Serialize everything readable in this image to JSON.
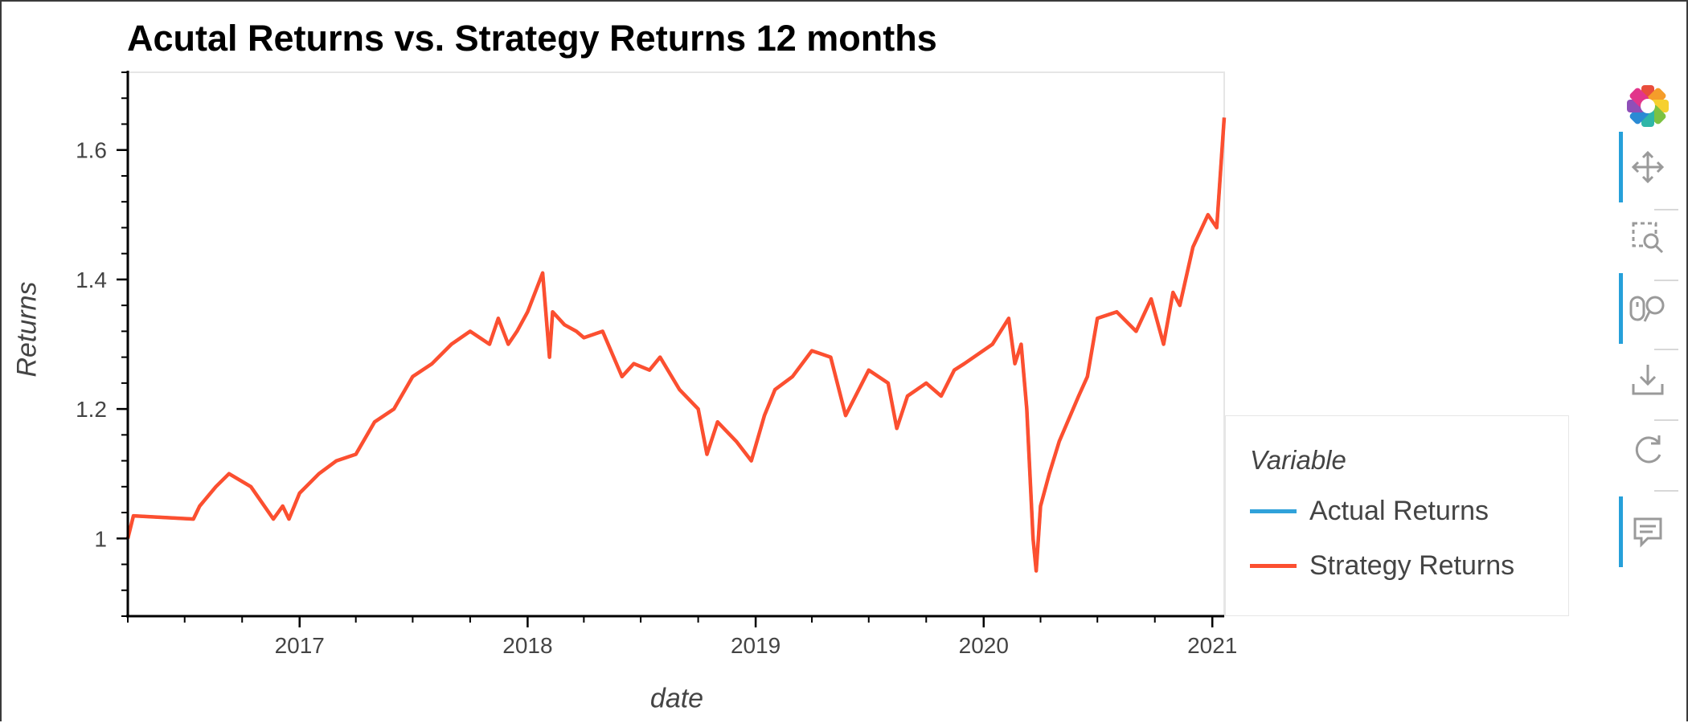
{
  "chart_data": {
    "type": "line",
    "title": "Acutal Returns vs. Strategy Returns 12 months",
    "xlabel": "date",
    "ylabel": "Returns",
    "xlim": [
      "2016-04-01",
      "2021-01-20"
    ],
    "ylim": [
      0.88,
      1.72
    ],
    "x_ticks": [
      "2017",
      "2018",
      "2019",
      "2020",
      "2021"
    ],
    "y_ticks": [
      1.0,
      1.2,
      1.4,
      1.6
    ],
    "y_tick_labels": [
      "1",
      "1.2",
      "1.4",
      "1.6"
    ],
    "grid": false,
    "legend": {
      "title": "Variable",
      "position": "right"
    },
    "series": [
      {
        "name": "Actual Returns",
        "color": "#30a2da",
        "x": [
          "2016-04-01",
          "2016-04-10",
          "2016-07-15",
          "2016-07-25",
          "2016-08-20",
          "2016-09-10",
          "2016-10-15",
          "2016-11-20",
          "2016-12-05",
          "2016-12-15",
          "2017-01-01",
          "2017-02-01",
          "2017-03-01",
          "2017-04-01",
          "2017-05-01",
          "2017-06-01",
          "2017-07-01",
          "2017-08-01",
          "2017-09-01",
          "2017-10-01",
          "2017-11-01",
          "2017-11-15",
          "2017-12-01",
          "2017-12-15",
          "2018-01-01",
          "2018-01-25",
          "2018-02-05",
          "2018-02-10",
          "2018-03-01",
          "2018-03-20",
          "2018-04-01",
          "2018-05-01",
          "2018-06-01",
          "2018-06-20",
          "2018-07-15",
          "2018-08-01",
          "2018-09-01",
          "2018-10-01",
          "2018-10-15",
          "2018-11-01",
          "2018-12-01",
          "2018-12-25",
          "2019-01-15",
          "2019-02-01",
          "2019-03-01",
          "2019-04-01",
          "2019-05-01",
          "2019-05-25",
          "2019-07-01",
          "2019-08-01",
          "2019-08-15",
          "2019-09-01",
          "2019-10-01",
          "2019-10-25",
          "2019-11-15",
          "2019-12-01",
          "2020-01-15",
          "2020-02-10",
          "2020-02-20",
          "2020-03-01",
          "2020-03-10",
          "2020-03-20",
          "2020-03-25",
          "2020-04-01",
          "2020-04-15",
          "2020-05-01",
          "2020-06-01",
          "2020-06-15",
          "2020-07-01",
          "2020-08-01",
          "2020-09-01",
          "2020-09-25",
          "2020-10-15",
          "2020-10-30",
          "2020-11-10",
          "2020-12-01",
          "2020-12-25",
          "2021-01-08",
          "2021-01-20"
        ],
        "y": [
          1.0,
          1.035,
          1.03,
          1.05,
          1.08,
          1.1,
          1.08,
          1.03,
          1.05,
          1.03,
          1.07,
          1.1,
          1.12,
          1.13,
          1.18,
          1.2,
          1.25,
          1.27,
          1.3,
          1.32,
          1.3,
          1.34,
          1.3,
          1.32,
          1.35,
          1.41,
          1.28,
          1.35,
          1.33,
          1.32,
          1.31,
          1.32,
          1.25,
          1.27,
          1.26,
          1.28,
          1.23,
          1.2,
          1.13,
          1.18,
          1.15,
          1.12,
          1.19,
          1.23,
          1.25,
          1.29,
          1.28,
          1.19,
          1.26,
          1.24,
          1.17,
          1.22,
          1.24,
          1.22,
          1.26,
          1.27,
          1.3,
          1.34,
          1.27,
          1.3,
          1.2,
          1.0,
          0.95,
          1.05,
          1.1,
          1.15,
          1.22,
          1.25,
          1.34,
          1.35,
          1.32,
          1.37,
          1.3,
          1.38,
          1.36,
          1.45,
          1.5,
          1.48,
          1.65
        ]
      },
      {
        "name": "Strategy Returns",
        "color": "#fc4f30",
        "x": [
          "2016-04-01",
          "2016-04-10",
          "2016-07-15",
          "2016-07-25",
          "2016-08-20",
          "2016-09-10",
          "2016-10-15",
          "2016-11-20",
          "2016-12-05",
          "2016-12-15",
          "2017-01-01",
          "2017-02-01",
          "2017-03-01",
          "2017-04-01",
          "2017-05-01",
          "2017-06-01",
          "2017-07-01",
          "2017-08-01",
          "2017-09-01",
          "2017-10-01",
          "2017-11-01",
          "2017-11-15",
          "2017-12-01",
          "2017-12-15",
          "2018-01-01",
          "2018-01-25",
          "2018-02-05",
          "2018-02-10",
          "2018-03-01",
          "2018-03-20",
          "2018-04-01",
          "2018-05-01",
          "2018-06-01",
          "2018-06-20",
          "2018-07-15",
          "2018-08-01",
          "2018-09-01",
          "2018-10-01",
          "2018-10-15",
          "2018-11-01",
          "2018-12-01",
          "2018-12-25",
          "2019-01-15",
          "2019-02-01",
          "2019-03-01",
          "2019-04-01",
          "2019-05-01",
          "2019-05-25",
          "2019-07-01",
          "2019-08-01",
          "2019-08-15",
          "2019-09-01",
          "2019-10-01",
          "2019-10-25",
          "2019-11-15",
          "2019-12-01",
          "2020-01-15",
          "2020-02-10",
          "2020-02-20",
          "2020-03-01",
          "2020-03-10",
          "2020-03-20",
          "2020-03-25",
          "2020-04-01",
          "2020-04-15",
          "2020-05-01",
          "2020-06-01",
          "2020-06-15",
          "2020-07-01",
          "2020-08-01",
          "2020-09-01",
          "2020-09-25",
          "2020-10-15",
          "2020-10-30",
          "2020-11-10",
          "2020-12-01",
          "2020-12-25",
          "2021-01-08",
          "2021-01-20"
        ],
        "y": [
          1.0,
          1.035,
          1.03,
          1.05,
          1.08,
          1.1,
          1.08,
          1.03,
          1.05,
          1.03,
          1.07,
          1.1,
          1.12,
          1.13,
          1.18,
          1.2,
          1.25,
          1.27,
          1.3,
          1.32,
          1.3,
          1.34,
          1.3,
          1.32,
          1.35,
          1.41,
          1.28,
          1.35,
          1.33,
          1.32,
          1.31,
          1.32,
          1.25,
          1.27,
          1.26,
          1.28,
          1.23,
          1.2,
          1.13,
          1.18,
          1.15,
          1.12,
          1.19,
          1.23,
          1.25,
          1.29,
          1.28,
          1.19,
          1.26,
          1.24,
          1.17,
          1.22,
          1.24,
          1.22,
          1.26,
          1.27,
          1.3,
          1.34,
          1.27,
          1.3,
          1.2,
          1.0,
          0.95,
          1.05,
          1.1,
          1.15,
          1.22,
          1.25,
          1.34,
          1.35,
          1.32,
          1.37,
          1.3,
          1.38,
          1.36,
          1.45,
          1.5,
          1.48,
          1.65
        ]
      }
    ]
  },
  "toolbar": {
    "logo_icon": "bokeh-logo-icon",
    "tools": [
      {
        "icon": "pan-icon",
        "active": true
      },
      {
        "icon": "box-zoom-icon",
        "active": false
      },
      {
        "icon": "wheel-zoom-icon",
        "active": true
      },
      {
        "icon": "save-icon",
        "active": false
      },
      {
        "icon": "reset-icon",
        "active": false
      },
      {
        "icon": "hover-icon",
        "active": true
      }
    ]
  }
}
